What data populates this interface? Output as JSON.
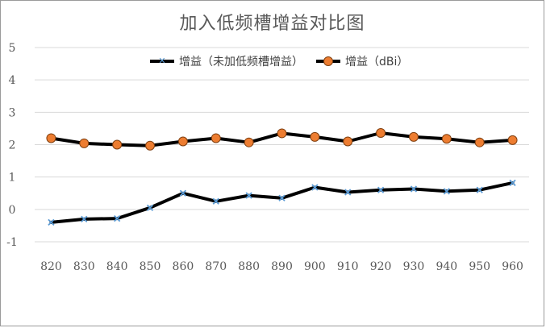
{
  "chart_data": {
    "type": "line",
    "title": "加入低频槽增益对比图",
    "xlabel": "",
    "ylabel": "",
    "categories": [
      "820",
      "830",
      "840",
      "850",
      "860",
      "870",
      "880",
      "890",
      "900",
      "910",
      "920",
      "930",
      "940",
      "950",
      "960"
    ],
    "ylim": [
      -1,
      5
    ],
    "yticks": [
      "5",
      "4",
      "3",
      "2",
      "1",
      "0",
      "-1"
    ],
    "grid": true,
    "legend_position": "top",
    "series": [
      {
        "name": "增益（未加低频槽增益）",
        "marker": "x",
        "line_color": "#000000",
        "marker_color": "#5b9bd5",
        "values": [
          -0.4,
          -0.3,
          -0.28,
          0.05,
          0.5,
          0.25,
          0.43,
          0.35,
          0.68,
          0.53,
          0.6,
          0.63,
          0.56,
          0.6,
          0.82
        ]
      },
      {
        "name": "增益（dBi）",
        "marker": "circle",
        "line_color": "#000000",
        "marker_color": "#ed7d31",
        "values": [
          2.2,
          2.04,
          2.0,
          1.97,
          2.1,
          2.2,
          2.07,
          2.35,
          2.24,
          2.1,
          2.36,
          2.24,
          2.18,
          2.07,
          2.14
        ]
      }
    ]
  }
}
